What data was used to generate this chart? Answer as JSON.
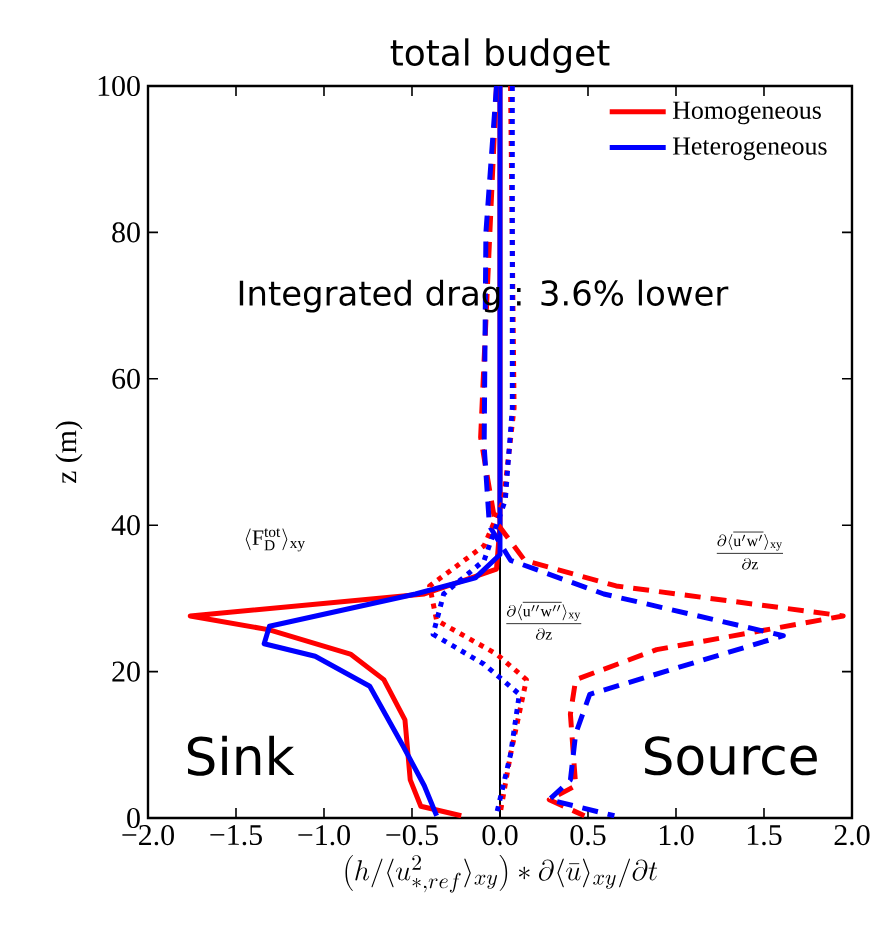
{
  "chart_data": {
    "type": "line",
    "title": "total budget",
    "xlabel": "\\left(h/\\langle u^{2}_{*,ref}\\rangle_{xy}\\right)*\\partial\\langle\\bar{u}\\rangle_{xy}/\\partial t",
    "ylabel": "z (m)",
    "xlim": [
      -2,
      2
    ],
    "ylim": [
      0,
      100
    ],
    "xticks": [
      {
        "value": -2,
        "label": "−2.0"
      },
      {
        "value": -1.5,
        "label": "−1.5"
      },
      {
        "value": -1,
        "label": "−1.0"
      },
      {
        "value": -0.5,
        "label": "−0.5"
      },
      {
        "value": 0,
        "label": "0.0"
      },
      {
        "value": 0.5,
        "label": "0.5"
      },
      {
        "value": 1,
        "label": "1.0"
      },
      {
        "value": 1.5,
        "label": "1.5"
      },
      {
        "value": 2,
        "label": "2.0"
      }
    ],
    "yticks": [
      0,
      20,
      40,
      60,
      80,
      100
    ],
    "legend": "top right",
    "series": [
      {
        "name": "Homogeneous",
        "color": "#ff0000",
        "line_style": "solid",
        "x": [
          0.0,
          0.0,
          -0.02,
          -0.43,
          -1.76,
          -1.31,
          -0.85,
          -0.66,
          -0.54,
          -0.51,
          -0.45,
          -0.22
        ],
        "values": [
          100,
          40,
          34,
          30.6,
          27.6,
          25.7,
          22.4,
          18.9,
          13.4,
          5.2,
          1.6,
          0.3
        ]
      },
      {
        "name": "Heterogeneous",
        "color": "#0000ff",
        "line_style": "solid",
        "x": [
          0.0,
          0.0,
          -0.14,
          -0.48,
          -1.31,
          -1.34,
          -1.05,
          -0.74,
          -0.55,
          -0.43,
          -0.36
        ],
        "values": [
          100,
          36,
          32.8,
          30.6,
          26.2,
          23.8,
          22.1,
          18,
          9.8,
          4.4,
          0.3
        ]
      },
      {
        "color": "#ff0000",
        "line_style": "dashed",
        "x": [
          -0.02,
          -0.11,
          -0.03,
          0.14,
          0.66,
          1.95,
          0.89,
          0.43,
          0.4,
          0.43,
          0.28,
          0.48
        ],
        "values": [
          100,
          52,
          40.7,
          35.2,
          31.7,
          27.6,
          23,
          18.9,
          14.2,
          4.4,
          2.5,
          0.3
        ]
      },
      {
        "color": "#0000ff",
        "line_style": "dashed",
        "x": [
          -0.02,
          -0.08,
          -0.09,
          -0.06,
          0.06,
          0.59,
          1.61,
          0.51,
          0.43,
          0.4,
          0.28,
          0.65
        ],
        "values": [
          100,
          80,
          50.8,
          39.9,
          35.2,
          30.6,
          24.9,
          16.9,
          11.5,
          5.2,
          2.5,
          0.3
        ]
      },
      {
        "color": "#ff0000",
        "line_style": "dotted",
        "x": [
          0.06,
          0.08,
          0.02,
          -0.09,
          -0.4,
          -0.36,
          -0.02,
          0.15,
          0.06,
          0.0
        ],
        "values": [
          100,
          56,
          43.4,
          37.2,
          31.7,
          27,
          22.4,
          18.9,
          8.7,
          0.5
        ]
      },
      {
        "color": "#0000ff",
        "line_style": "dotted",
        "x": [
          0.07,
          0.07,
          0.03,
          -0.09,
          -0.32,
          -0.38,
          -0.09,
          0.11,
          0.06,
          -0.02
        ],
        "values": [
          100,
          56,
          43.4,
          35.2,
          30.6,
          25.1,
          21,
          16.9,
          8.7,
          0.5
        ]
      }
    ],
    "ref_lines": [
      {
        "axis": "x",
        "value": 0,
        "color": "#000000"
      }
    ],
    "annotations": [
      "Integrated drag : 3.6% lower",
      "Sink",
      "Source",
      "\\langle \\mathrm{F}_{\\mathrm{D}}^{\\mathrm{tot}}\\rangle_{\\mathrm{xy}}",
      "\\frac{\\partial\\langle\\overline{\\mathrm{u''w''}}\\rangle_{\\mathrm{xy}}}{\\partial \\mathrm{z}}",
      "\\frac{\\partial\\langle\\overline{\\mathrm{u'w'}}\\rangle_{\\mathrm{xy}}}{\\partial \\mathrm{z}}"
    ]
  }
}
